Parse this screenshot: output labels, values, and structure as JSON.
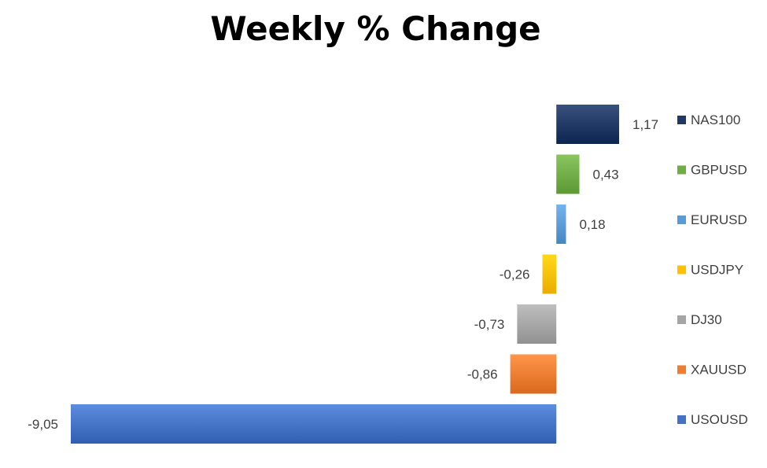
{
  "chart_data": {
    "type": "bar",
    "orientation": "horizontal",
    "title": "Weekly % Change",
    "xlabel": "",
    "ylabel": "",
    "grid": false,
    "legend_position": "right",
    "categories": [
      "NAS100",
      "GBPUSD",
      "EURUSD",
      "USDJPY",
      "DJ30",
      "XAUUSD",
      "USOUSD"
    ],
    "values": [
      1.17,
      0.43,
      0.18,
      -0.26,
      -0.73,
      -0.86,
      -9.05
    ],
    "value_labels": [
      "1,17",
      "0,43",
      "0,18",
      "-0,26",
      "-0,73",
      "-0,86",
      "-9,05"
    ],
    "colors": [
      "#203864",
      "#70AD47",
      "#5B9BD5",
      "#FFC000",
      "#A5A5A5",
      "#ED7D31",
      "#4472C4"
    ],
    "xlim": [
      -9.05,
      1.17
    ]
  }
}
